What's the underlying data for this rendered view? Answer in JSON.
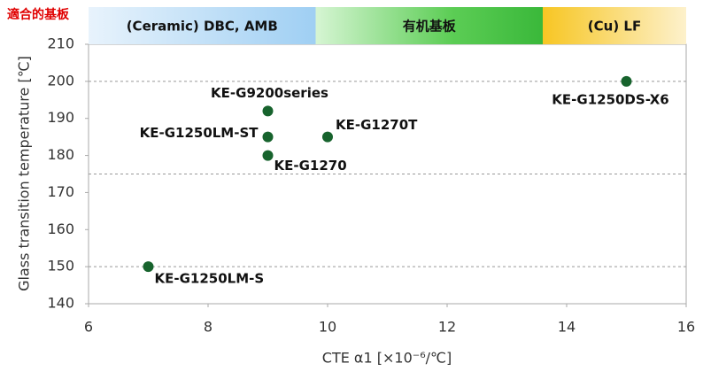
{
  "chart_data": {
    "type": "scatter",
    "header_label": "適合的基板",
    "bands": [
      {
        "label": "(Ceramic) DBC, AMB",
        "from": 6,
        "to": 9.8
      },
      {
        "label": "有机基板",
        "from": 9.8,
        "to": 13.6
      },
      {
        "label": "(Cu) LF",
        "from": 13.6,
        "to": 16
      }
    ],
    "x_label": "CTE α1 [×10⁻⁶/℃]",
    "y_label": "Glass transition temperature [℃]",
    "labels": [
      "KE-G9200series",
      "KE-G1250LM-ST",
      "KE-G1270",
      "KE-G1270T",
      "KE-G1250DS-X6",
      "KE-G1250LM-S"
    ],
    "x": [
      9,
      9,
      9,
      10,
      15,
      7
    ],
    "values": [
      192,
      185,
      180,
      185,
      200,
      150
    ],
    "color": "#17632d",
    "xlim": [
      6,
      16
    ],
    "xticks": [
      6,
      8,
      10,
      12,
      14,
      16
    ],
    "ylim": [
      140,
      210
    ],
    "yticks": [
      140,
      150,
      160,
      170,
      180,
      190,
      200,
      210
    ],
    "grid_lines": [
      150,
      175,
      200
    ]
  }
}
